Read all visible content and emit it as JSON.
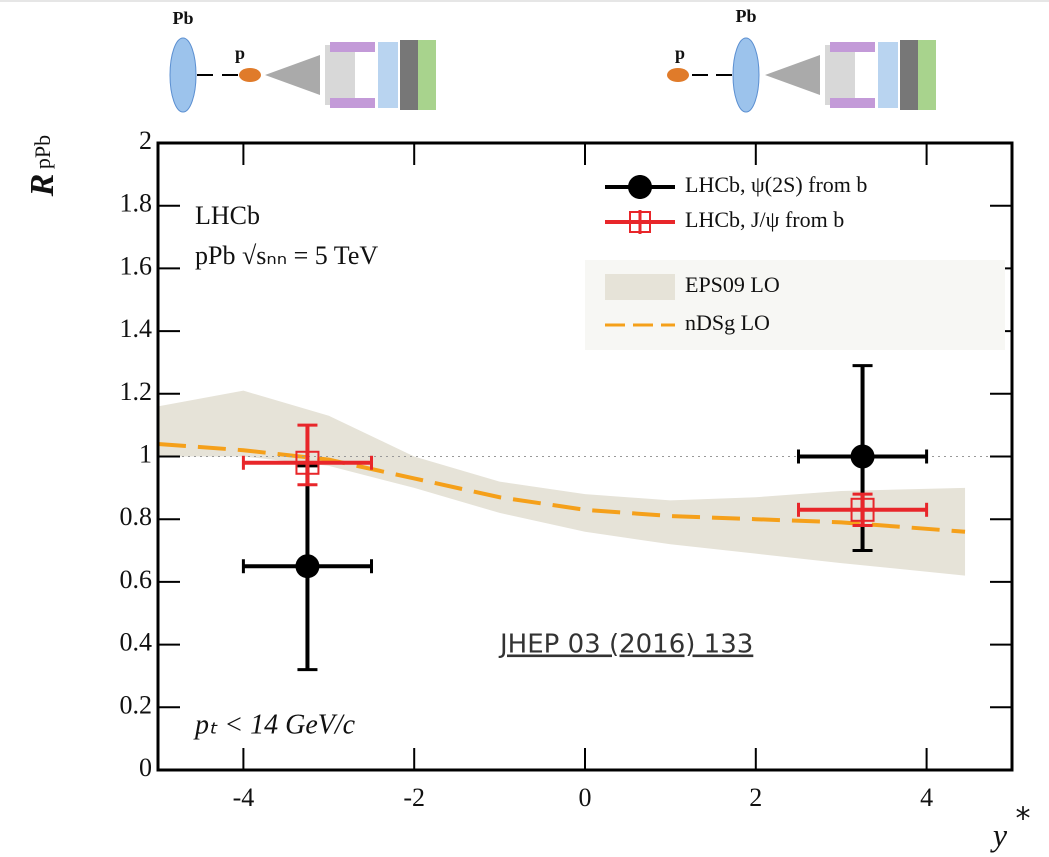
{
  "chart_data": {
    "type": "errorbar",
    "ylabel": "R",
    "ylabel_sub": "pPb",
    "xlabel": "y",
    "xlabel_sup": "*",
    "annotations": [
      "LHCb",
      "pPb √sₙₙ = 5 TeV",
      "pₜ < 14 GeV/c"
    ],
    "link": "JHEP 03 (2016) 133",
    "diagrams": [
      {
        "labels": [
          "Pb",
          "p"
        ]
      },
      {
        "labels": [
          "p",
          "Pb"
        ]
      }
    ],
    "xlim": [
      -5,
      5
    ],
    "ylim": [
      0,
      2
    ],
    "xticks": [
      -4,
      -2,
      0,
      2,
      4
    ],
    "yticks": [
      0,
      0.2,
      0.4,
      0.6,
      0.8,
      1,
      1.2,
      1.4,
      1.6,
      1.8,
      2
    ],
    "reference_line": 1,
    "series": [
      {
        "name": "LHCb, ψ(2S) from b",
        "kind": "points",
        "color": "#000000",
        "marker": "circle",
        "x": [
          -3.25,
          3.25
        ],
        "values": [
          0.65,
          1.0
        ],
        "x_low": [
          -4.0,
          2.5
        ],
        "x_high": [
          -2.5,
          4.0
        ],
        "y_low": [
          0.32,
          0.7
        ],
        "y_high": [
          0.97,
          1.29
        ]
      },
      {
        "name": "LHCb, J/ψ from b",
        "kind": "points",
        "color": "#e8262a",
        "marker": "square",
        "x": [
          -3.25,
          3.25
        ],
        "values": [
          0.98,
          0.83
        ],
        "x_low": [
          -4.0,
          2.5
        ],
        "x_high": [
          -2.5,
          4.0
        ],
        "y_low": [
          0.91,
          0.78
        ],
        "y_high": [
          1.1,
          0.88
        ]
      },
      {
        "name": "EPS09 LO",
        "kind": "band",
        "color": "#e6e3d8",
        "x": [
          -5,
          -4,
          -3,
          -2,
          -1,
          0,
          1,
          2,
          3,
          4.45
        ],
        "lower": [
          1.0,
          1.0,
          0.97,
          0.9,
          0.82,
          0.76,
          0.72,
          0.69,
          0.66,
          0.62
        ],
        "upper": [
          1.16,
          1.21,
          1.13,
          1.0,
          0.92,
          0.88,
          0.86,
          0.87,
          0.89,
          0.9
        ]
      },
      {
        "name": "nDSg LO",
        "kind": "dashed",
        "color": "#f5a01a",
        "x": [
          -5,
          -4,
          -3,
          -2,
          -1,
          0,
          1,
          2,
          3,
          4.45
        ],
        "values": [
          1.04,
          1.02,
          0.99,
          0.93,
          0.87,
          0.83,
          0.81,
          0.8,
          0.79,
          0.76
        ]
      }
    ]
  }
}
